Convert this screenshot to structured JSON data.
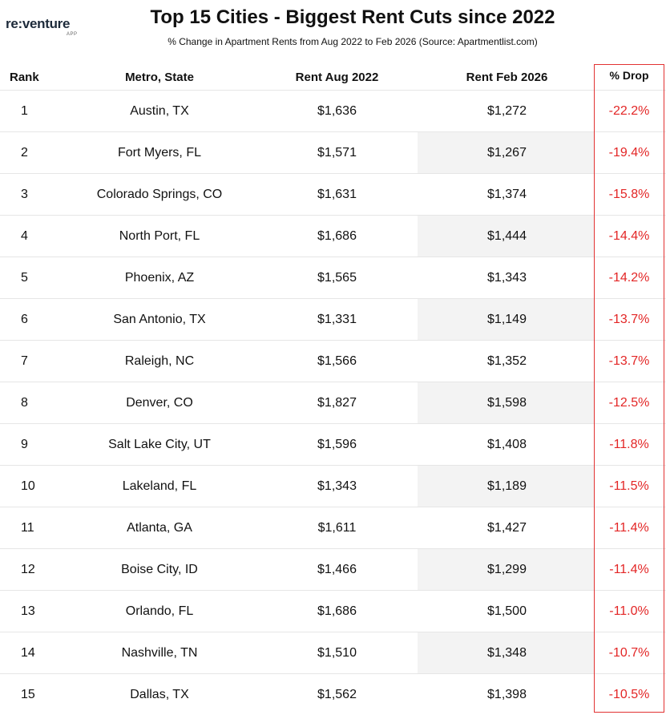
{
  "brand": {
    "name": "re:venture",
    "sub": "APP"
  },
  "title": "Top 15 Cities - Biggest Rent Cuts since 2022",
  "subtitle": "% Change in Apartment Rents from Aug 2022 to Feb 2026 (Source: Apartmentlist.com)",
  "colors": {
    "drop_text": "#e32626",
    "drop_border": "#e23232",
    "shade": "#f3f3f3"
  },
  "chart_data": {
    "type": "table",
    "title": "Top 15 Cities - Biggest Rent Cuts since 2022",
    "subtitle": "% Change in Apartment Rents from Aug 2022 to Feb 2026 (Source: Apartmentlist.com)",
    "columns": [
      "Rank",
      "Metro, State",
      "Rent Aug 2022",
      "Rent Feb 2026",
      "% Drop"
    ],
    "rows": [
      [
        "1",
        "Austin, TX",
        "$1,636",
        "$1,272",
        "-22.2%"
      ],
      [
        "2",
        "Fort Myers, FL",
        "$1,571",
        "$1,267",
        "-19.4%"
      ],
      [
        "3",
        "Colorado Springs, CO",
        "$1,631",
        "$1,374",
        "-15.8%"
      ],
      [
        "4",
        "North Port, FL",
        "$1,686",
        "$1,444",
        "-14.4%"
      ],
      [
        "5",
        "Phoenix, AZ",
        "$1,565",
        "$1,343",
        "-14.2%"
      ],
      [
        "6",
        "San Antonio, TX",
        "$1,331",
        "$1,149",
        "-13.7%"
      ],
      [
        "7",
        "Raleigh, NC",
        "$1,566",
        "$1,352",
        "-13.7%"
      ],
      [
        "8",
        "Denver, CO",
        "$1,827",
        "$1,598",
        "-12.5%"
      ],
      [
        "9",
        "Salt Lake City, UT",
        "$1,596",
        "$1,408",
        "-11.8%"
      ],
      [
        "10",
        "Lakeland, FL",
        "$1,343",
        "$1,189",
        "-11.5%"
      ],
      [
        "11",
        "Atlanta, GA",
        "$1,611",
        "$1,427",
        "-11.4%"
      ],
      [
        "12",
        "Boise City, ID",
        "$1,466",
        "$1,299",
        "-11.4%"
      ],
      [
        "13",
        "Orlando, FL",
        "$1,686",
        "$1,500",
        "-11.0%"
      ],
      [
        "14",
        "Nashville, TN",
        "$1,510",
        "$1,348",
        "-10.7%"
      ],
      [
        "15",
        "Dallas, TX",
        "$1,562",
        "$1,398",
        "-10.5%"
      ]
    ]
  }
}
